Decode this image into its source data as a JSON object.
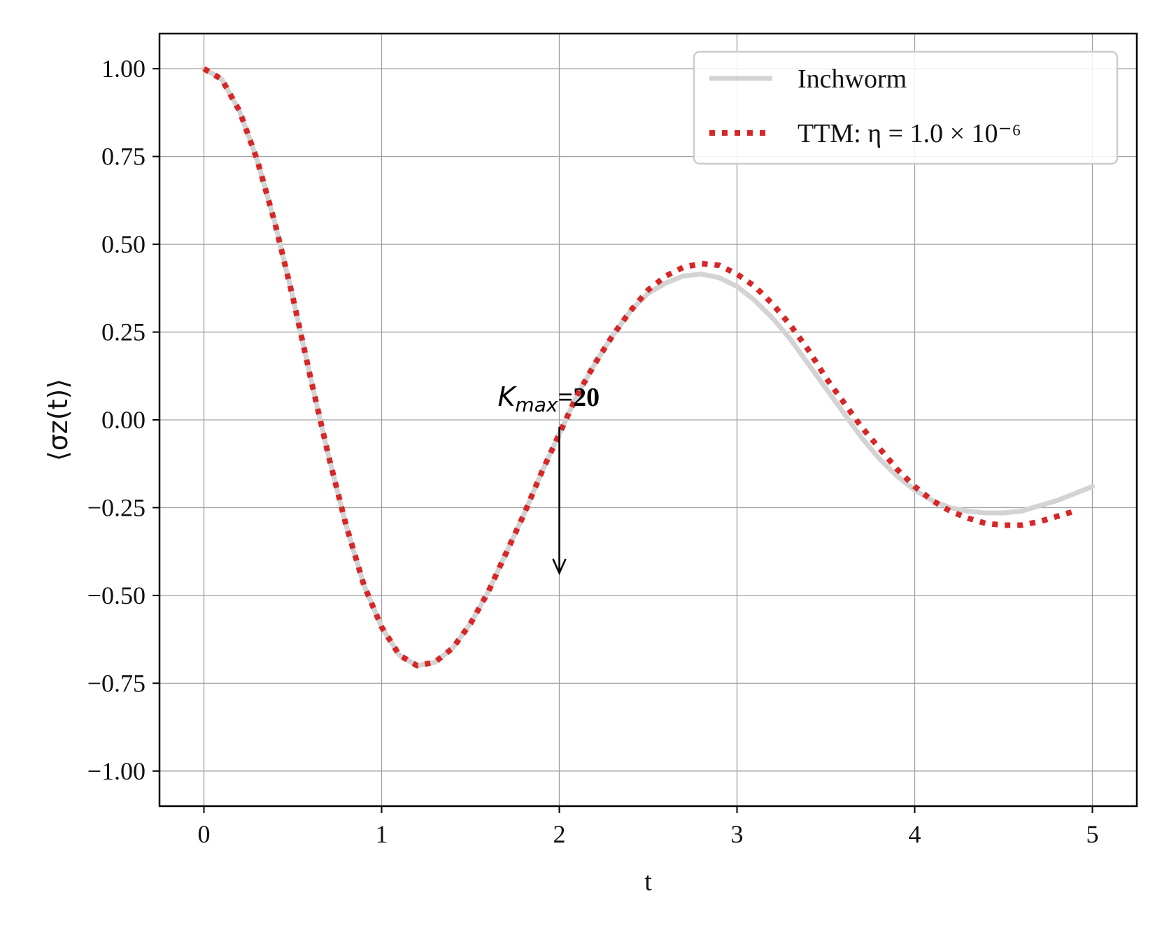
{
  "chart_data": {
    "type": "line",
    "title": "",
    "xlabel": "t",
    "ylabel": "⟨σz(t)⟩",
    "xlim": [
      -0.25,
      5.25
    ],
    "ylim": [
      -1.1,
      1.1
    ],
    "xticks": [
      0,
      1,
      2,
      3,
      4,
      5
    ],
    "xtick_labels": [
      "0",
      "1",
      "2",
      "3",
      "4",
      "5"
    ],
    "yticks": [
      1.0,
      0.75,
      0.5,
      0.25,
      0.0,
      -0.25,
      -0.5,
      -0.75,
      -1.0
    ],
    "ytick_labels": [
      "1.00",
      "0.75",
      "0.50",
      "0.25",
      "0.00",
      "−0.25",
      "−0.50",
      "−0.75",
      "−1.00"
    ],
    "grid": true,
    "legend": "top-right",
    "series": [
      {
        "name": "Inchworm",
        "color": "#d3d3d3",
        "style": "solid",
        "x": [
          0.0,
          0.1,
          0.2,
          0.3,
          0.4,
          0.5,
          0.6,
          0.7,
          0.8,
          0.9,
          1.0,
          1.1,
          1.2,
          1.3,
          1.4,
          1.5,
          1.6,
          1.7,
          1.8,
          1.9,
          2.0,
          2.1,
          2.2,
          2.3,
          2.4,
          2.5,
          2.6,
          2.7,
          2.8,
          2.9,
          3.0,
          3.1,
          3.2,
          3.3,
          3.4,
          3.5,
          3.6,
          3.7,
          3.8,
          3.9,
          4.0,
          4.1,
          4.2,
          4.3,
          4.4,
          4.5,
          4.6,
          4.7,
          4.8,
          4.9,
          5.0
        ],
        "y": [
          1.0,
          0.97,
          0.88,
          0.74,
          0.56,
          0.35,
          0.12,
          -0.1,
          -0.3,
          -0.47,
          -0.59,
          -0.67,
          -0.7,
          -0.69,
          -0.65,
          -0.58,
          -0.49,
          -0.38,
          -0.27,
          -0.15,
          -0.04,
          0.07,
          0.16,
          0.24,
          0.31,
          0.36,
          0.39,
          0.41,
          0.415,
          0.405,
          0.38,
          0.34,
          0.29,
          0.23,
          0.16,
          0.09,
          0.02,
          -0.05,
          -0.11,
          -0.16,
          -0.2,
          -0.23,
          -0.25,
          -0.26,
          -0.265,
          -0.265,
          -0.26,
          -0.245,
          -0.23,
          -0.21,
          -0.19
        ]
      },
      {
        "name": "TTM: η = 1.0 × 10⁻⁶",
        "color": "#d62728",
        "style": "dotted",
        "x": [
          0.0,
          0.1,
          0.2,
          0.3,
          0.4,
          0.5,
          0.6,
          0.7,
          0.8,
          0.9,
          1.0,
          1.1,
          1.2,
          1.3,
          1.4,
          1.5,
          1.6,
          1.7,
          1.8,
          1.9,
          2.0,
          2.1,
          2.2,
          2.3,
          2.4,
          2.5,
          2.6,
          2.7,
          2.8,
          2.9,
          3.0,
          3.1,
          3.2,
          3.3,
          3.4,
          3.5,
          3.6,
          3.7,
          3.8,
          3.9,
          4.0,
          4.1,
          4.2,
          4.3,
          4.4,
          4.5,
          4.6,
          4.7,
          4.8,
          4.9
        ],
        "y": [
          1.0,
          0.97,
          0.88,
          0.74,
          0.56,
          0.35,
          0.12,
          -0.1,
          -0.3,
          -0.47,
          -0.59,
          -0.67,
          -0.7,
          -0.69,
          -0.65,
          -0.58,
          -0.49,
          -0.38,
          -0.27,
          -0.15,
          -0.04,
          0.07,
          0.16,
          0.24,
          0.31,
          0.37,
          0.41,
          0.435,
          0.445,
          0.44,
          0.415,
          0.38,
          0.33,
          0.27,
          0.2,
          0.12,
          0.05,
          -0.02,
          -0.08,
          -0.14,
          -0.19,
          -0.23,
          -0.26,
          -0.28,
          -0.295,
          -0.3,
          -0.3,
          -0.29,
          -0.275,
          -0.26
        ]
      }
    ],
    "annotations": [
      {
        "text_italic": "K",
        "text_sub": "max",
        "text_bold": "=20",
        "arrow_to": [
          2.0,
          -0.44
        ],
        "arrow_from": [
          2.0,
          -0.02
        ]
      }
    ]
  }
}
